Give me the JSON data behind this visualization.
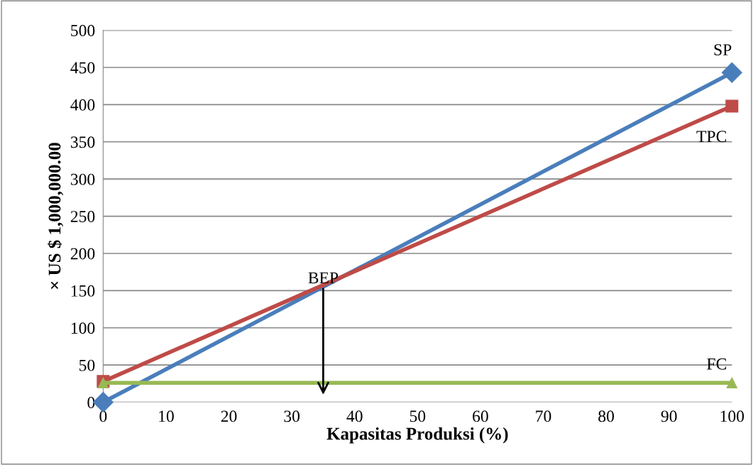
{
  "chart_data": {
    "type": "line",
    "xlabel": "Kapasitas Produksi (%)",
    "ylabel": "× US $ 1,000,000.00",
    "x": [
      0,
      100
    ],
    "series": [
      {
        "name": "SP",
        "color": "#4a7ebb",
        "values": [
          0,
          443
        ],
        "marker": "diamond"
      },
      {
        "name": "TPC",
        "color": "#be4b48",
        "values": [
          28,
          398
        ],
        "marker": "square"
      },
      {
        "name": "FC",
        "color": "#98b954",
        "values": [
          26,
          26
        ],
        "marker": "triangle"
      }
    ],
    "xlim": [
      0,
      100
    ],
    "xticks": [
      0,
      10,
      20,
      30,
      40,
      50,
      60,
      70,
      80,
      90,
      100
    ],
    "ylim": [
      0,
      500
    ],
    "yticks": [
      0,
      50,
      100,
      150,
      200,
      250,
      300,
      350,
      400,
      450,
      500
    ],
    "grid": "y",
    "line_style": "solid",
    "annotations": [
      {
        "text": "BEP",
        "x": 35,
        "y": 155
      }
    ]
  }
}
